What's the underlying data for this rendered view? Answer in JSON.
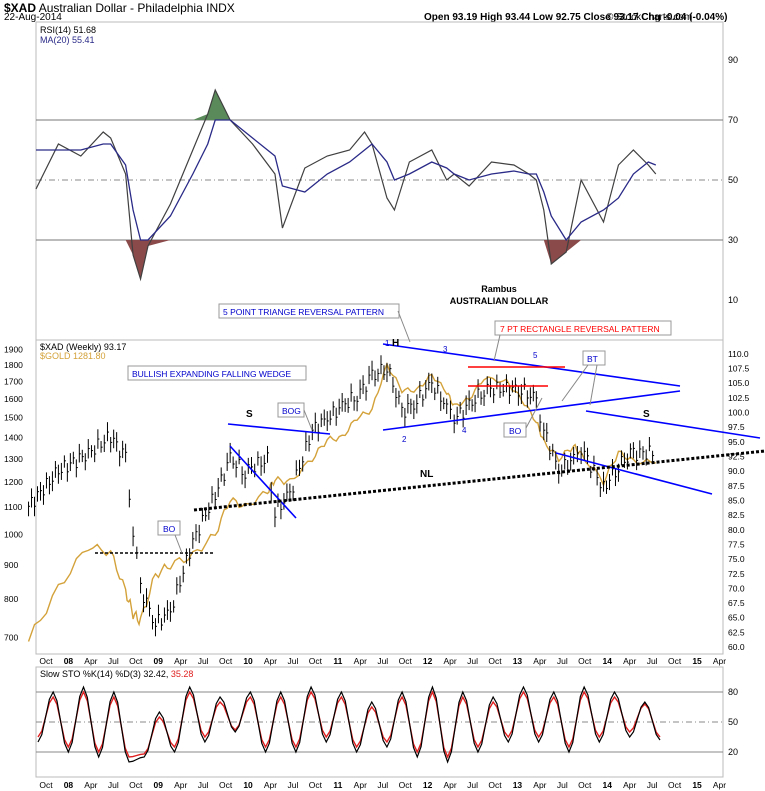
{
  "header": {
    "symbol": "$XAD",
    "name": "Australian Dollar - Philadelphia",
    "exchange": "INDX",
    "date": "22-Aug-2014",
    "ohlc": "Open 93.19  High 93.44  Low 92.75  Close 93.17  Chg -0.04 (-0.04%)",
    "copyright": "© StockCharts.com",
    "change_color": "#cc0000"
  },
  "chart_data": [
    {
      "type": "line",
      "panel": "RSI",
      "legend": [
        "RSI(14) 51.68",
        "MA(20) 55.41"
      ],
      "ylim": [
        0,
        100
      ],
      "ticks": [
        10,
        30,
        50,
        70,
        90
      ],
      "reference_lines": [
        30,
        50,
        70
      ],
      "x": [
        "2007-09",
        "2007-12",
        "2008-03",
        "2008-06",
        "2008-07",
        "2008-09",
        "2008-10",
        "2008-11",
        "2008-12",
        "2009-03",
        "2009-06",
        "2009-08",
        "2009-09",
        "2009-11",
        "2010-02",
        "2010-05",
        "2010-06",
        "2010-09",
        "2010-12",
        "2011-03",
        "2011-05",
        "2011-06",
        "2011-08",
        "2011-09",
        "2011-11",
        "2012-02",
        "2012-04",
        "2012-05",
        "2012-07",
        "2012-10",
        "2013-01",
        "2013-03",
        "2013-04",
        "2013-05",
        "2013-06",
        "2013-08",
        "2013-10",
        "2014-01",
        "2014-03",
        "2014-05",
        "2014-07",
        "2014-08"
      ],
      "series": [
        {
          "name": "RSI(14)",
          "color": "#404040",
          "values": [
            47,
            62,
            58,
            66,
            64,
            52,
            25,
            17,
            28,
            42,
            60,
            72,
            80,
            70,
            62,
            52,
            34,
            54,
            58,
            60,
            66,
            62,
            44,
            40,
            56,
            60,
            50,
            52,
            48,
            56,
            55,
            52,
            50,
            40,
            22,
            26,
            50,
            36,
            55,
            60,
            55,
            52
          ]
        },
        {
          "name": "MA(20)",
          "color": "#2a2a88",
          "values": [
            60,
            60,
            60,
            62,
            62,
            55,
            40,
            30,
            30,
            38,
            52,
            62,
            70,
            70,
            64,
            58,
            48,
            46,
            52,
            56,
            60,
            62,
            56,
            50,
            52,
            56,
            54,
            52,
            50,
            52,
            53,
            52,
            52,
            46,
            38,
            30,
            36,
            40,
            44,
            52,
            56,
            55
          ]
        }
      ]
    },
    {
      "type": "line",
      "panel": "price",
      "legend": [
        "$XAD (Weekly) 93.17",
        "$GOLD 1281.80"
      ],
      "left_axis_ticks": [
        700,
        800,
        900,
        1000,
        1100,
        1200,
        1300,
        1400,
        1500,
        1600,
        1700,
        1800,
        1900
      ],
      "right_axis_ticks": [
        60.0,
        62.5,
        65.0,
        67.5,
        70.0,
        72.5,
        75.0,
        77.5,
        80.0,
        82.5,
        85.0,
        87.5,
        90.0,
        92.5,
        95.0,
        97.5,
        100.0,
        102.5,
        105.0,
        107.5,
        110.0
      ],
      "ylim_right": [
        59.5,
        111.5
      ],
      "ylim_left": [
        670,
        1930
      ],
      "x": [
        "2007-08",
        "2007-12",
        "2008-04",
        "2008-07",
        "2008-09",
        "2008-10",
        "2008-11",
        "2009-01",
        "2009-03",
        "2009-06",
        "2009-09",
        "2009-11",
        "2010-01",
        "2010-04",
        "2010-05",
        "2010-07",
        "2010-10",
        "2010-12",
        "2011-02",
        "2011-04",
        "2011-06",
        "2011-08",
        "2011-10",
        "2011-12",
        "2012-02",
        "2012-04",
        "2012-05",
        "2012-07",
        "2012-09",
        "2012-12",
        "2013-02",
        "2013-04",
        "2013-05",
        "2013-07",
        "2013-09",
        "2013-10",
        "2014-01",
        "2014-03",
        "2014-05",
        "2014-08"
      ],
      "series": [
        {
          "name": "$XAD",
          "color": "#000000",
          "values": [
            84,
            90,
            93,
            96,
            92,
            80,
            70,
            64,
            66,
            78,
            86,
            92,
            90,
            92,
            83,
            86,
            97,
            99,
            101,
            103,
            106,
            108,
            100,
            102,
            105,
            101,
            99,
            101,
            104,
            104,
            104,
            102,
            97,
            90,
            92,
            94,
            87,
            91,
            93,
            93.17
          ]
        },
        {
          "name": "$GOLD",
          "color": "#d4a23a",
          "values": [
            690,
            830,
            960,
            940,
            820,
            760,
            740,
            870,
            900,
            930,
            1000,
            1130,
            1100,
            1160,
            1210,
            1200,
            1300,
            1390,
            1400,
            1500,
            1540,
            1800,
            1650,
            1650,
            1740,
            1640,
            1560,
            1600,
            1720,
            1700,
            1600,
            1480,
            1380,
            1300,
            1360,
            1320,
            1200,
            1330,
            1290,
            1282
          ]
        }
      ]
    },
    {
      "type": "line",
      "panel": "stochastic",
      "legend": [
        "Slow STO %K(14) %D(3) 32.42,",
        "35.28"
      ],
      "ylim": [
        0,
        100
      ],
      "ticks": [
        20,
        50,
        80
      ],
      "reference_lines": [
        20,
        50,
        80
      ],
      "series": [
        {
          "name": "%K",
          "color": "#000000",
          "values": [
            30,
            80,
            20,
            85,
            15,
            80,
            10,
            15,
            60,
            20,
            85,
            30,
            75,
            40,
            80,
            20,
            80,
            20,
            85,
            30,
            80,
            20,
            70,
            25,
            80,
            15,
            85,
            10,
            80,
            20,
            75,
            30,
            85,
            30,
            80,
            20,
            85,
            30,
            80,
            35,
            70,
            32
          ]
        },
        {
          "name": "%D",
          "color": "#e02020",
          "values": [
            35,
            75,
            25,
            80,
            20,
            75,
            15,
            18,
            55,
            25,
            80,
            35,
            70,
            42,
            75,
            25,
            75,
            25,
            80,
            35,
            75,
            25,
            65,
            30,
            75,
            20,
            80,
            15,
            75,
            25,
            70,
            35,
            80,
            35,
            75,
            25,
            80,
            35,
            75,
            40,
            68,
            35
          ]
        }
      ]
    }
  ],
  "x_axis_labels": [
    "Oct",
    "08",
    "Apr",
    "Jul",
    "Oct",
    "09",
    "Apr",
    "Jul",
    "Oct",
    "10",
    "Apr",
    "Jul",
    "Oct",
    "11",
    "Apr",
    "Jul",
    "Oct",
    "12",
    "Apr",
    "Jul",
    "Oct",
    "13",
    "Apr",
    "Jul",
    "Oct",
    "14",
    "Apr",
    "Jul",
    "Oct",
    "15",
    "Apr"
  ],
  "annotations": {
    "rambus": "Rambus",
    "rsi_title": "AUSTRALIAN DOLLAR",
    "triangle_box": "5 POINT TRIANGE REVERSAL PATTERN",
    "wedge_box": "BULLISH EXPANDING FALLING WEDGE",
    "rectangle_box": "7 PT RECTANGLE REVERSAL PATTERN",
    "bo1": "BO",
    "bog": "BOG",
    "bo2": "BO",
    "bt": "BT",
    "s_left": "S",
    "s_right": "S",
    "h": "H",
    "nl": "NL",
    "n1": "1",
    "n2": "2",
    "n3": "3",
    "n4": "4",
    "n5": "5"
  },
  "colors": {
    "trendline": "#0000ff",
    "neckline": "#000000",
    "rectangle": "#ff0000",
    "rsi_overbought_fill": "#5a8a5a",
    "rsi_oversold_fill": "#8a4a4a"
  }
}
